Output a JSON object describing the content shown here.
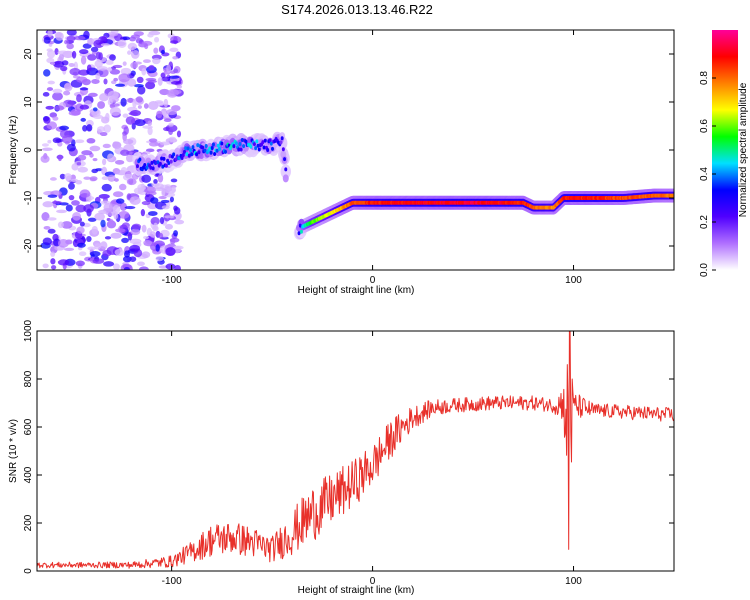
{
  "chart_data": [
    {
      "type": "heatmap",
      "title": "S174.2026.013.13.46.R22",
      "xlabel": "Height of straight line (km)",
      "ylabel": "Frequency (Hz)",
      "xlim": [
        -167,
        150
      ],
      "ylim": [
        -25,
        25
      ],
      "xticks": [
        -100,
        0,
        100
      ],
      "yticks": [
        20,
        10,
        0,
        -10,
        -20
      ],
      "colorbar": {
        "label": "Normalized spectral amplitude",
        "range": [
          0,
          1
        ],
        "ticks": [
          "0.0",
          "0.2",
          "0.4",
          "0.6",
          "0.8"
        ],
        "colors": [
          "#ffffff",
          "#b070ff",
          "#5000ff",
          "#0000ff",
          "#00e0ff",
          "#00ff00",
          "#ffff00",
          "#ff8000",
          "#ff0000",
          "#ff0099"
        ]
      },
      "trace": {
        "x": [
          -117,
          -110,
          -100,
          -90,
          -80,
          -70,
          -60,
          -50,
          -45,
          -40,
          -35,
          -30,
          -20,
          -10,
          0,
          50,
          75,
          80,
          85,
          90,
          95,
          110,
          125,
          140,
          150
        ],
        "frequency": [
          -3,
          -3,
          -2,
          0,
          0,
          1,
          1,
          1,
          2,
          -17,
          -16,
          -15,
          -13,
          -11,
          -11,
          -11,
          -11,
          -12,
          -12,
          -12,
          -10,
          -10,
          -10,
          -9.5,
          -9.5
        ],
        "amplitude": [
          0.4,
          0.35,
          0.3,
          0.45,
          0.4,
          0.45,
          0.4,
          0.35,
          0.3,
          0.35,
          0.45,
          0.6,
          0.7,
          0.85,
          0.9,
          0.95,
          0.9,
          0.85,
          0.8,
          0.8,
          0.9,
          0.9,
          0.85,
          0.85,
          0.8
        ]
      },
      "noise_region_x": [
        -167,
        -100
      ]
    },
    {
      "type": "line",
      "title": "",
      "xlabel": "Height of straight line (km)",
      "ylabel": "SNR (10 * v/v)",
      "xlim": [
        -167,
        150
      ],
      "ylim": [
        0,
        1000
      ],
      "xticks": [
        -100,
        0,
        100
      ],
      "yticks": [
        0,
        200,
        400,
        600,
        800,
        1000
      ],
      "color": "#e8302a",
      "series": [
        {
          "name": "SNR",
          "x": [
            -167,
            -140,
            -120,
            -100,
            -90,
            -80,
            -70,
            -60,
            -50,
            -40,
            -30,
            -20,
            -10,
            0,
            10,
            20,
            30,
            40,
            60,
            80,
            90,
            95,
            98,
            100,
            110,
            130,
            150
          ],
          "center": [
            25,
            25,
            25,
            40,
            80,
            130,
            140,
            120,
            90,
            160,
            240,
            300,
            360,
            440,
            560,
            640,
            680,
            690,
            700,
            700,
            690,
            700,
            560,
            690,
            670,
            660,
            650
          ],
          "spread": [
            12,
            12,
            14,
            25,
            45,
            70,
            70,
            65,
            55,
            95,
            120,
            110,
            100,
            90,
            80,
            50,
            35,
            30,
            30,
            30,
            30,
            80,
            420,
            60,
            30,
            30,
            30
          ]
        }
      ]
    }
  ]
}
